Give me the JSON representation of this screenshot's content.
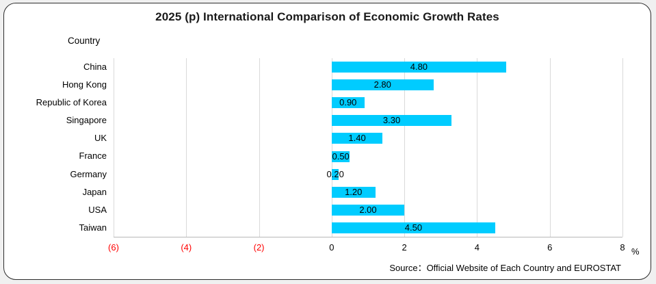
{
  "source": "Source：Official Website of Each Country and EUROSTAT",
  "colors": {
    "bar": "#00CCFF",
    "negative_tick": "#FF0000",
    "tick": "#000000",
    "grid": "#D9D9D9",
    "card_border": "#2B2B2B",
    "background": "#F0F0F0"
  },
  "chart_data": {
    "type": "bar",
    "orientation": "horizontal",
    "title": "2025 (p) International Comparison of Economic Growth Rates",
    "ylabel": "Country",
    "xlabel": "%",
    "categories": [
      "China",
      "Hong Kong",
      "Republic of Korea",
      "Singapore",
      "UK",
      "France",
      "Germany",
      "Japan",
      "USA",
      "Taiwan"
    ],
    "values": [
      4.8,
      2.8,
      0.9,
      3.3,
      1.4,
      0.5,
      0.2,
      1.2,
      2.0,
      4.5
    ],
    "value_labels": [
      "4.80",
      "2.80",
      "0.90",
      "3.30",
      "1.40",
      "0.50",
      "0.20",
      "1.20",
      "2.00",
      "4.50"
    ],
    "xlim": [
      -6,
      8
    ],
    "xticks": [
      {
        "label": "(6)",
        "value": -6,
        "color": "#FF0000"
      },
      {
        "label": "(4)",
        "value": -4,
        "color": "#FF0000"
      },
      {
        "label": "(2)",
        "value": -2,
        "color": "#FF0000"
      },
      {
        "label": "0",
        "value": 0,
        "color": "#000000"
      },
      {
        "label": "2",
        "value": 2,
        "color": "#000000"
      },
      {
        "label": "4",
        "value": 4,
        "color": "#000000"
      },
      {
        "label": "6",
        "value": 6,
        "color": "#000000"
      },
      {
        "label": "8",
        "value": 8,
        "color": "#000000"
      }
    ],
    "grid": true,
    "legend": false
  }
}
